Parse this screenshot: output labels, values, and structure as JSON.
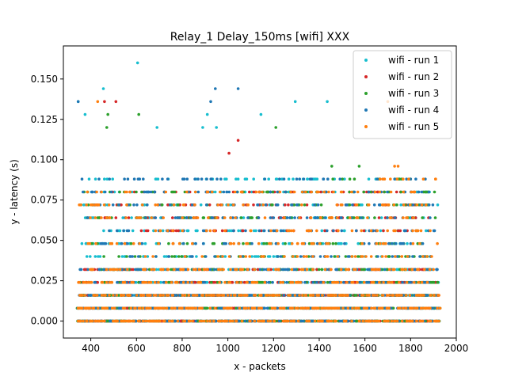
{
  "chart_data": {
    "type": "scatter",
    "title": "Relay_1 Delay_150ms [wifi] XXX",
    "xlabel": "x - packets",
    "ylabel": "y - latency (s)",
    "xlim": [
      280,
      2000
    ],
    "ylim": [
      -0.0105,
      0.1705
    ],
    "xticks": [
      400,
      600,
      800,
      1000,
      1200,
      1400,
      1600,
      1800,
      2000
    ],
    "yticks": [
      0.0,
      0.025,
      0.05,
      0.075,
      0.1,
      0.125,
      0.15
    ],
    "ytick_labels": [
      "0.000",
      "0.025",
      "0.050",
      "0.075",
      "0.100",
      "0.125",
      "0.150"
    ],
    "legend_position": "top-right",
    "grid": false,
    "band_levels": [
      0.0,
      0.008,
      0.016,
      0.024,
      0.032,
      0.04,
      0.048,
      0.056,
      0.064,
      0.072,
      0.08,
      0.088
    ],
    "x_range": [
      340,
      1930
    ],
    "series": [
      {
        "name": "wifi - run 1",
        "color": "#17becf",
        "bands": [
          {
            "y": 0.0,
            "x": [
              340,
              1930
            ]
          },
          {
            "y": 0.008,
            "x": [
              340,
              1930
            ]
          },
          {
            "y": 0.016,
            "x": [
              350,
              1925
            ]
          },
          {
            "y": 0.024,
            "x": [
              350,
              1925
            ]
          },
          {
            "y": 0.032,
            "x": [
              360,
              1920
            ]
          },
          {
            "y": 0.04,
            "x": [
              380,
              1910
            ]
          },
          {
            "y": 0.048,
            "x": [
              360,
              1915
            ]
          },
          {
            "y": 0.056,
            "x": [
              420,
              1900
            ]
          },
          {
            "y": 0.064,
            "x": [
              345,
              1925
            ]
          },
          {
            "y": 0.072,
            "x": [
              345,
              1925
            ]
          },
          {
            "y": 0.08,
            "x": [
              350,
              1925
            ]
          },
          {
            "y": 0.088,
            "x": [
              380,
              1880
            ]
          }
        ],
        "outliers": [
          [
            345,
            0.136
          ],
          [
            375,
            0.128
          ],
          [
            455,
            0.144
          ],
          [
            605,
            0.16
          ],
          [
            690,
            0.12
          ],
          [
            890,
            0.12
          ],
          [
            910,
            0.128
          ],
          [
            950,
            0.12
          ],
          [
            1145,
            0.128
          ],
          [
            1295,
            0.136
          ],
          [
            1435,
            0.136
          ]
        ]
      },
      {
        "name": "wifi - run 2",
        "color": "#d62728",
        "bands": [
          {
            "y": 0.0,
            "x": [
              340,
              1930
            ]
          },
          {
            "y": 0.008,
            "x": [
              340,
              1930
            ]
          },
          {
            "y": 0.016,
            "x": [
              360,
              1925
            ]
          },
          {
            "y": 0.024,
            "x": [
              360,
              1925
            ]
          },
          {
            "y": 0.032,
            "x": [
              370,
              1910
            ]
          },
          {
            "y": 0.056,
            "x": [
              600,
              1820
            ]
          },
          {
            "y": 0.064,
            "x": [
              400,
              1900
            ]
          },
          {
            "y": 0.072,
            "x": [
              400,
              1900
            ]
          },
          {
            "y": 0.08,
            "x": [
              420,
              1900
            ]
          }
        ],
        "outliers": [
          [
            460,
            0.136
          ],
          [
            510,
            0.136
          ],
          [
            1005,
            0.104
          ],
          [
            1045,
            0.112
          ]
        ]
      },
      {
        "name": "wifi - run 3",
        "color": "#2ca02c",
        "bands": [
          {
            "y": 0.0,
            "x": [
              340,
              1930
            ]
          },
          {
            "y": 0.008,
            "x": [
              340,
              1930
            ]
          },
          {
            "y": 0.016,
            "x": [
              350,
              1925
            ]
          },
          {
            "y": 0.024,
            "x": [
              350,
              1925
            ]
          },
          {
            "y": 0.032,
            "x": [
              360,
              1920
            ]
          },
          {
            "y": 0.04,
            "x": [
              400,
              1920
            ]
          },
          {
            "y": 0.048,
            "x": [
              380,
              1910
            ]
          },
          {
            "y": 0.064,
            "x": [
              350,
              1920
            ]
          },
          {
            "y": 0.072,
            "x": [
              350,
              1920
            ]
          },
          {
            "y": 0.08,
            "x": [
              360,
              1920
            ]
          },
          {
            "y": 0.088,
            "x": [
              1400,
              1800
            ]
          }
        ],
        "outliers": [
          [
            470,
            0.12
          ],
          [
            475,
            0.128
          ],
          [
            610,
            0.128
          ],
          [
            1210,
            0.12
          ],
          [
            1455,
            0.096
          ],
          [
            1575,
            0.096
          ],
          [
            1760,
            0.088
          ]
        ]
      },
      {
        "name": "wifi - run 4",
        "color": "#1f77b4",
        "bands": [
          {
            "y": 0.0,
            "x": [
              340,
              1930
            ]
          },
          {
            "y": 0.008,
            "x": [
              340,
              1930
            ]
          },
          {
            "y": 0.016,
            "x": [
              345,
              1925
            ]
          },
          {
            "y": 0.024,
            "x": [
              345,
              1925
            ]
          },
          {
            "y": 0.032,
            "x": [
              350,
              1920
            ]
          },
          {
            "y": 0.04,
            "x": [
              500,
              1900
            ]
          },
          {
            "y": 0.048,
            "x": [
              370,
              1915
            ]
          },
          {
            "y": 0.056,
            "x": [
              440,
              1910
            ]
          },
          {
            "y": 0.064,
            "x": [
              345,
              1925
            ]
          },
          {
            "y": 0.072,
            "x": [
              345,
              1925
            ]
          },
          {
            "y": 0.08,
            "x": [
              345,
              1925
            ]
          },
          {
            "y": 0.088,
            "x": [
              360,
              1900
            ]
          }
        ],
        "outliers": [
          [
            345,
            0.136
          ],
          [
            925,
            0.136
          ],
          [
            945,
            0.144
          ],
          [
            1045,
            0.144
          ]
        ]
      },
      {
        "name": "wifi - run 5",
        "color": "#ff7f0e",
        "bands": [
          {
            "y": 0.0,
            "x": [
              340,
              1930
            ]
          },
          {
            "y": 0.008,
            "x": [
              340,
              1930
            ]
          },
          {
            "y": 0.016,
            "x": [
              345,
              1925
            ]
          },
          {
            "y": 0.024,
            "x": [
              345,
              1925
            ]
          },
          {
            "y": 0.032,
            "x": [
              350,
              1925
            ]
          },
          {
            "y": 0.04,
            "x": [
              560,
              1920
            ]
          },
          {
            "y": 0.048,
            "x": [
              380,
              1920
            ]
          },
          {
            "y": 0.056,
            "x": [
              620,
              1900
            ]
          },
          {
            "y": 0.064,
            "x": [
              345,
              1925
            ]
          },
          {
            "y": 0.072,
            "x": [
              345,
              1925
            ]
          },
          {
            "y": 0.08,
            "x": [
              345,
              1925
            ]
          },
          {
            "y": 0.088,
            "x": [
              1650,
              1910
            ]
          }
        ],
        "outliers": [
          [
            430,
            0.136
          ],
          [
            1700,
            0.136
          ],
          [
            1730,
            0.096
          ],
          [
            1745,
            0.096
          ]
        ]
      }
    ]
  }
}
